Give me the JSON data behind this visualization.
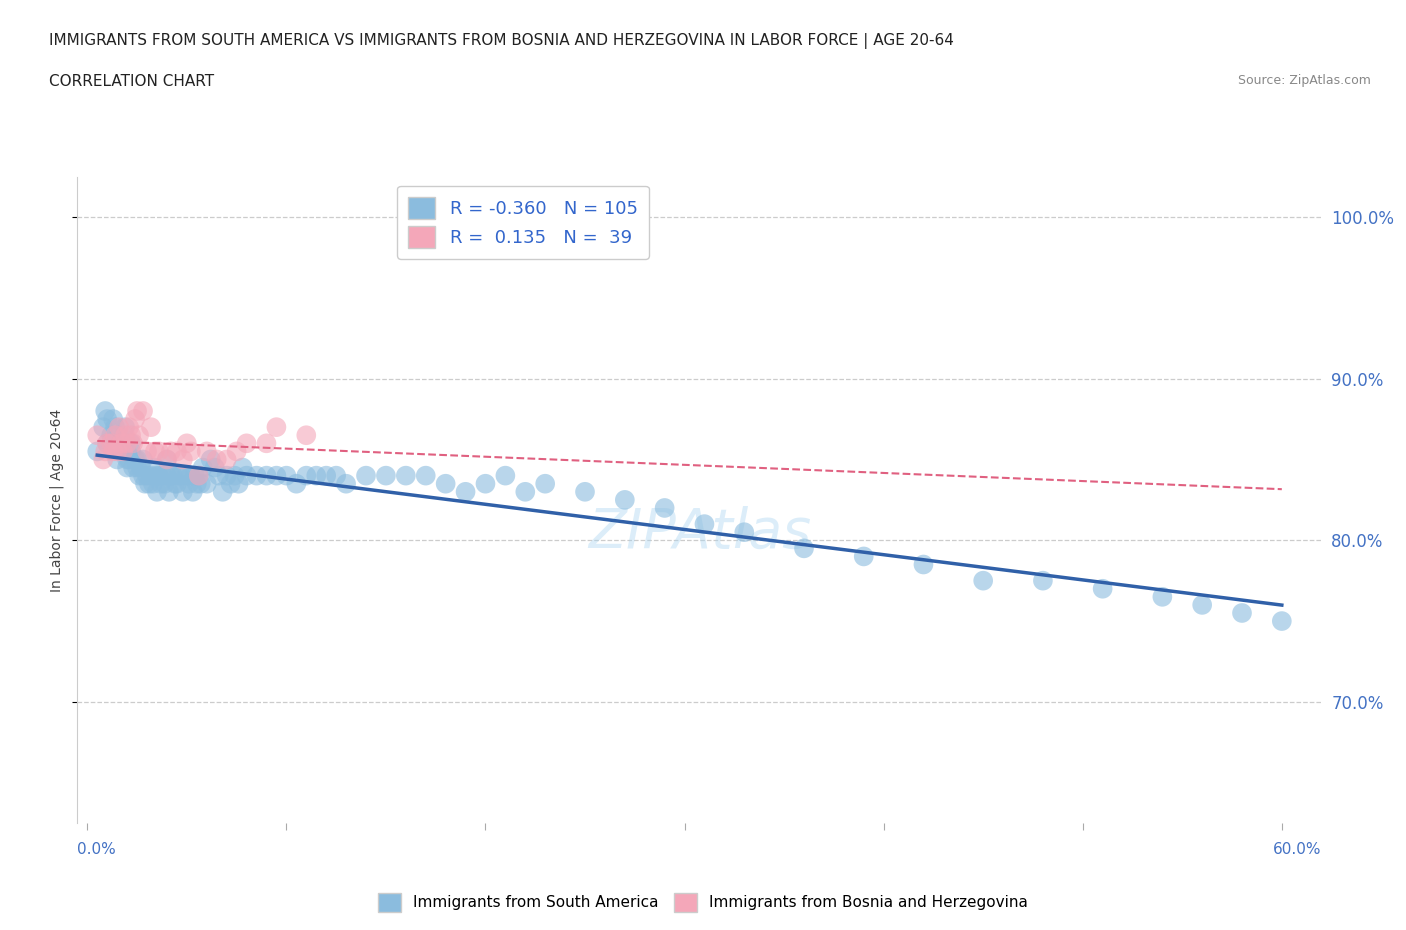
{
  "title_line1": "IMMIGRANTS FROM SOUTH AMERICA VS IMMIGRANTS FROM BOSNIA AND HERZEGOVINA IN LABOR FORCE | AGE 20-64",
  "title_line2": "CORRELATION CHART",
  "source_text": "Source: ZipAtlas.com",
  "ylabel": "In Labor Force | Age 20-64",
  "legend_blue_R": "-0.360",
  "legend_blue_N": "105",
  "legend_pink_R": "0.135",
  "legend_pink_N": "39",
  "blue_color": "#8BBCDE",
  "pink_color": "#F4A7B9",
  "blue_line_color": "#3060A8",
  "pink_line_color": "#E06080",
  "watermark_text": "ZIPAtlas",
  "xlim": [
    -0.005,
    0.62
  ],
  "ylim": [
    0.625,
    1.025
  ],
  "xticks": [
    0.0,
    0.1,
    0.2,
    0.3,
    0.4,
    0.5,
    0.6
  ],
  "yticks": [
    0.7,
    0.8,
    0.9,
    1.0
  ],
  "blue_scatter_x": [
    0.005,
    0.008,
    0.009,
    0.01,
    0.01,
    0.012,
    0.013,
    0.014,
    0.015,
    0.015,
    0.016,
    0.017,
    0.018,
    0.019,
    0.02,
    0.02,
    0.02,
    0.021,
    0.022,
    0.022,
    0.023,
    0.024,
    0.025,
    0.025,
    0.026,
    0.027,
    0.028,
    0.028,
    0.029,
    0.03,
    0.031,
    0.032,
    0.033,
    0.034,
    0.035,
    0.035,
    0.036,
    0.037,
    0.038,
    0.039,
    0.04,
    0.04,
    0.041,
    0.042,
    0.043,
    0.044,
    0.045,
    0.046,
    0.047,
    0.048,
    0.05,
    0.051,
    0.052,
    0.053,
    0.054,
    0.055,
    0.056,
    0.057,
    0.058,
    0.06,
    0.062,
    0.064,
    0.066,
    0.068,
    0.07,
    0.072,
    0.074,
    0.076,
    0.078,
    0.08,
    0.085,
    0.09,
    0.095,
    0.1,
    0.105,
    0.11,
    0.115,
    0.12,
    0.125,
    0.13,
    0.14,
    0.15,
    0.16,
    0.17,
    0.18,
    0.19,
    0.2,
    0.21,
    0.22,
    0.23,
    0.25,
    0.27,
    0.29,
    0.31,
    0.33,
    0.36,
    0.39,
    0.42,
    0.45,
    0.48,
    0.51,
    0.54,
    0.56,
    0.58,
    0.6
  ],
  "blue_scatter_y": [
    0.855,
    0.87,
    0.88,
    0.875,
    0.86,
    0.865,
    0.875,
    0.87,
    0.86,
    0.85,
    0.865,
    0.855,
    0.86,
    0.87,
    0.855,
    0.845,
    0.85,
    0.85,
    0.855,
    0.86,
    0.845,
    0.85,
    0.845,
    0.85,
    0.84,
    0.845,
    0.84,
    0.85,
    0.835,
    0.84,
    0.835,
    0.84,
    0.835,
    0.845,
    0.84,
    0.83,
    0.84,
    0.835,
    0.84,
    0.835,
    0.84,
    0.85,
    0.83,
    0.84,
    0.84,
    0.835,
    0.835,
    0.84,
    0.84,
    0.83,
    0.84,
    0.835,
    0.84,
    0.83,
    0.84,
    0.835,
    0.84,
    0.835,
    0.845,
    0.835,
    0.85,
    0.845,
    0.84,
    0.83,
    0.84,
    0.835,
    0.84,
    0.835,
    0.845,
    0.84,
    0.84,
    0.84,
    0.84,
    0.84,
    0.835,
    0.84,
    0.84,
    0.84,
    0.84,
    0.835,
    0.84,
    0.84,
    0.84,
    0.84,
    0.835,
    0.83,
    0.835,
    0.84,
    0.83,
    0.835,
    0.83,
    0.825,
    0.82,
    0.81,
    0.805,
    0.795,
    0.79,
    0.785,
    0.775,
    0.775,
    0.77,
    0.765,
    0.76,
    0.755,
    0.75
  ],
  "pink_scatter_x": [
    0.005,
    0.008,
    0.009,
    0.01,
    0.012,
    0.013,
    0.014,
    0.015,
    0.016,
    0.017,
    0.018,
    0.019,
    0.02,
    0.021,
    0.022,
    0.023,
    0.024,
    0.025,
    0.026,
    0.028,
    0.03,
    0.032,
    0.034,
    0.036,
    0.04,
    0.042,
    0.045,
    0.048,
    0.05,
    0.052,
    0.056,
    0.06,
    0.065,
    0.07,
    0.075,
    0.08,
    0.09,
    0.095,
    0.11
  ],
  "pink_scatter_y": [
    0.865,
    0.85,
    0.855,
    0.86,
    0.86,
    0.855,
    0.865,
    0.855,
    0.87,
    0.86,
    0.855,
    0.865,
    0.86,
    0.87,
    0.865,
    0.86,
    0.875,
    0.88,
    0.865,
    0.88,
    0.855,
    0.87,
    0.855,
    0.855,
    0.85,
    0.855,
    0.855,
    0.85,
    0.86,
    0.855,
    0.84,
    0.855,
    0.85,
    0.85,
    0.855,
    0.86,
    0.86,
    0.87,
    0.865
  ]
}
